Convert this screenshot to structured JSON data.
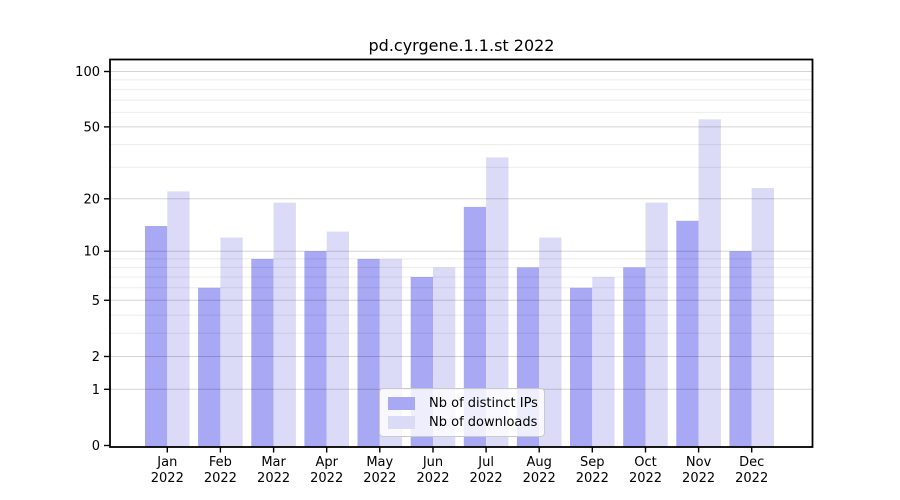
{
  "chart_data": {
    "type": "bar",
    "title": "pd.cyrgene.1.1.st 2022",
    "categories": [
      "Jan 2022",
      "Feb 2022",
      "Mar 2022",
      "Apr 2022",
      "May 2022",
      "Jun 2022",
      "Jul 2022",
      "Aug 2022",
      "Sep 2022",
      "Oct 2022",
      "Nov 2022",
      "Dec 2022"
    ],
    "series": [
      {
        "name": "Nb of distinct IPs",
        "color": "#a8a8f4",
        "values": [
          14,
          6,
          9,
          10,
          9,
          7,
          18,
          8,
          6,
          8,
          15,
          10
        ]
      },
      {
        "name": "Nb of downloads",
        "color": "#dbdbf8",
        "values": [
          22,
          12,
          19,
          13,
          9,
          8,
          34,
          12,
          7,
          19,
          55,
          23
        ]
      }
    ],
    "xlabel": "",
    "ylabel": "",
    "yscale": "log1p",
    "ylim": [
      0,
      116
    ],
    "ytick_labels": [
      100,
      50,
      20,
      10,
      5,
      2,
      1,
      0
    ],
    "yticks_minor": [
      3,
      4,
      6,
      7,
      8,
      9,
      30,
      40,
      60,
      70,
      80,
      90
    ],
    "grid": "horizontal",
    "legend_position": "inside-bottom-center",
    "colors": {
      "axis": "#000000",
      "grid_major": "#cfcfcf",
      "grid_minor": "#ececec",
      "background": "#ffffff"
    }
  }
}
